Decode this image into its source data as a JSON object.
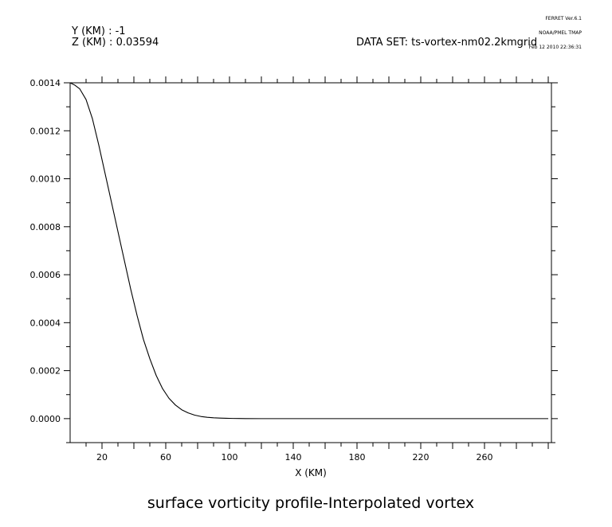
{
  "header": {
    "y_info": "Y (KM) : -1",
    "z_info": "Z (KM) : 0.03594",
    "dataset": "DATA SET: ts-vortex-nm02.2kmgrid"
  },
  "stamp": {
    "line1": "FERRET Ver.6.1",
    "line2": "NOAA/PMEL TMAP",
    "line3": "Feb 12 2010 22:36:31"
  },
  "chart_data": {
    "type": "line",
    "title": "surface vorticity profile-Interpolated vortex",
    "xlabel": "X (KM)",
    "ylabel": "",
    "xlim": [
      0,
      302
    ],
    "ylim": [
      -0.0001,
      0.0014
    ],
    "xticks": [
      20,
      60,
      100,
      140,
      180,
      220,
      260
    ],
    "xtick_labels": [
      "20",
      "60",
      "100",
      "140",
      "180",
      "220",
      "260"
    ],
    "yticks": [
      0.0,
      0.0002,
      0.0004,
      0.0006,
      0.0008,
      0.001,
      0.0012,
      0.0014
    ],
    "ytick_labels": [
      "0.0000",
      "0.0002",
      "0.0004",
      "0.0006",
      "0.0008",
      "0.0010",
      "0.0012",
      "0.0014"
    ],
    "grid": false,
    "series": [
      {
        "x": [
          0,
          3,
          6,
          10,
          14,
          18,
          22,
          26,
          30,
          34,
          38,
          42,
          46,
          50,
          54,
          58,
          62,
          66,
          70,
          74,
          78,
          82,
          86,
          90,
          94,
          98,
          102,
          106,
          110,
          120,
          140,
          160,
          180,
          200,
          220,
          240,
          260,
          280,
          300
        ],
        "y": [
          0.0014,
          0.00139,
          0.001375,
          0.00133,
          0.00125,
          0.00114,
          0.00102,
          0.0009,
          0.00078,
          0.00066,
          0.00054,
          0.00043,
          0.00033,
          0.00025,
          0.00018,
          0.000125,
          8.5e-05,
          5.7e-05,
          3.7e-05,
          2.4e-05,
          1.5e-05,
          9e-06,
          5.5e-06,
          3.5e-06,
          2.2e-06,
          1.3e-06,
          8e-07,
          5e-07,
          3e-07,
          0.0,
          0.0,
          0.0,
          0.0,
          0.0,
          0.0,
          0.0,
          0.0,
          0.0,
          0.0
        ]
      }
    ]
  }
}
